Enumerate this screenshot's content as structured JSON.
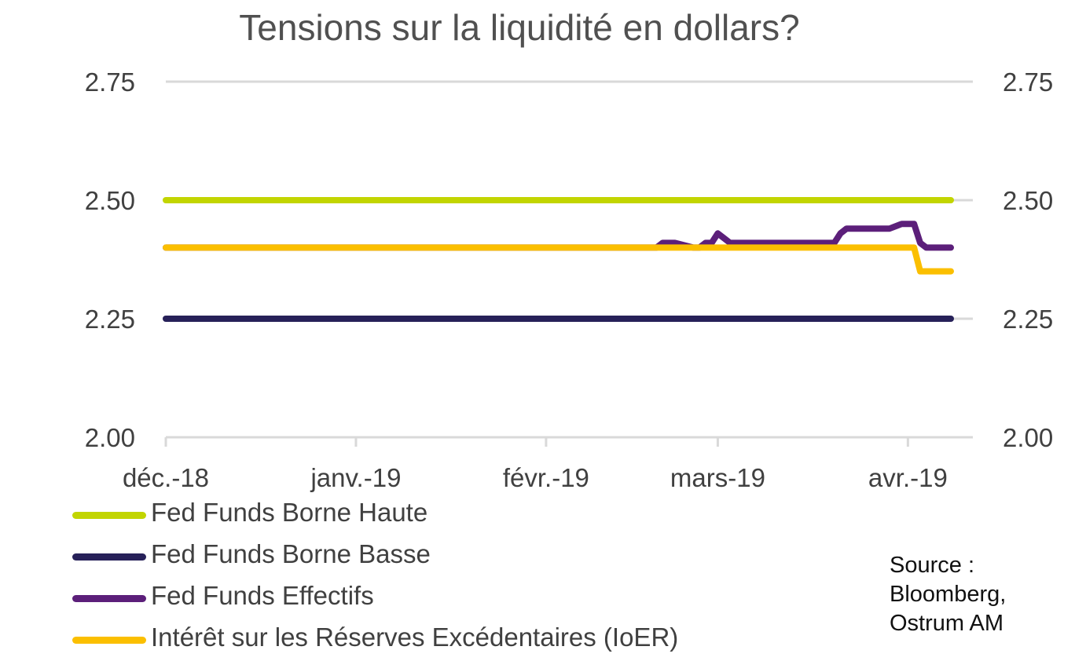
{
  "chart_data": {
    "type": "line",
    "title": "Tensions sur la liquidité en dollars?",
    "xlabel": "",
    "ylabel": "",
    "ylim": [
      2.0,
      2.75
    ],
    "yticks": [
      "2.00",
      "2.25",
      "2.50",
      "2.75"
    ],
    "y_right_axis": true,
    "grid": true,
    "x_axis": {
      "type": "date",
      "range": [
        "2018-12-01",
        "2019-04-08"
      ],
      "tick_labels": [
        "déc.-18",
        "janv.-19",
        "févr.-19",
        "mars-19",
        "avr.-19"
      ],
      "tick_dates": [
        "2018-12-01",
        "2019-01-01",
        "2019-02-01",
        "2019-03-01",
        "2019-04-01"
      ]
    },
    "series": [
      {
        "name": "Fed Funds Borne Haute",
        "color": "#c2d500",
        "points": [
          [
            "2018-12-01",
            2.5
          ],
          [
            "2019-04-08",
            2.5
          ]
        ]
      },
      {
        "name": "Fed Funds Borne Basse",
        "color": "#272159",
        "points": [
          [
            "2018-12-01",
            2.25
          ],
          [
            "2019-04-08",
            2.25
          ]
        ]
      },
      {
        "name": "Fed Funds Effectifs",
        "color": "#5c1f7a",
        "points": [
          [
            "2018-12-01",
            2.4
          ],
          [
            "2019-02-19",
            2.4
          ],
          [
            "2019-02-20",
            2.41
          ],
          [
            "2019-02-22",
            2.41
          ],
          [
            "2019-02-25",
            2.4
          ],
          [
            "2019-02-26",
            2.4
          ],
          [
            "2019-02-27",
            2.41
          ],
          [
            "2019-02-28",
            2.41
          ],
          [
            "2019-03-01",
            2.43
          ],
          [
            "2019-03-02",
            2.42
          ],
          [
            "2019-03-03",
            2.41
          ],
          [
            "2019-03-18",
            2.41
          ],
          [
            "2019-03-20",
            2.41
          ],
          [
            "2019-03-21",
            2.43
          ],
          [
            "2019-03-22",
            2.44
          ],
          [
            "2019-03-29",
            2.44
          ],
          [
            "2019-03-31",
            2.45
          ],
          [
            "2019-04-02",
            2.45
          ],
          [
            "2019-04-03",
            2.41
          ],
          [
            "2019-04-04",
            2.4
          ],
          [
            "2019-04-08",
            2.4
          ]
        ]
      },
      {
        "name": "Intérêt sur les Réserves Excédentaires (IoER)",
        "color": "#fbbf00",
        "points": [
          [
            "2018-12-01",
            2.4
          ],
          [
            "2019-04-01",
            2.4
          ],
          [
            "2019-04-02",
            2.4
          ],
          [
            "2019-04-03",
            2.35
          ],
          [
            "2019-04-08",
            2.35
          ]
        ]
      }
    ]
  },
  "source": {
    "line1": "Source :",
    "line2": "Bloomberg,",
    "line3": "Ostrum AM"
  }
}
